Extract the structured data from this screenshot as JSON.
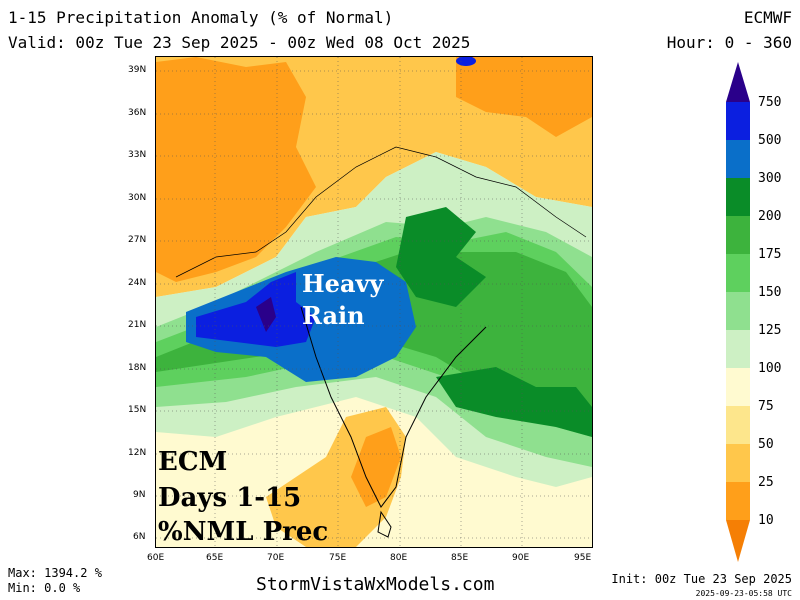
{
  "header": {
    "title": "1-15 Precipitation Anomaly (% of Normal)",
    "valid": "Valid: 00z Tue 23 Sep 2025 - 00z Wed 08 Oct 2025",
    "model": "ECMWF",
    "hours": "Hour: 0 - 360"
  },
  "map": {
    "lat_labels": [
      "39N",
      "36N",
      "33N",
      "30N",
      "27N",
      "24N",
      "21N",
      "18N",
      "15N",
      "12N",
      "9N",
      "6N"
    ],
    "lon_labels": [
      "60E",
      "65E",
      "70E",
      "75E",
      "80E",
      "85E",
      "90E",
      "95E"
    ],
    "overlay_heavy_line1": "Heavy",
    "overlay_heavy_line2": "Rain",
    "overlay_ecm_line1": "ECM",
    "overlay_ecm_line2": "Days 1-15",
    "overlay_ecm_line3": "%NML Prec"
  },
  "legend": {
    "levels": [
      "750",
      "500",
      "300",
      "200",
      "175",
      "150",
      "125",
      "100",
      "75",
      "50",
      "25",
      "10"
    ],
    "colors": [
      "#2a008a",
      "#0b1fe0",
      "#0a6fc9",
      "#0a8c28",
      "#3db33d",
      "#5ed05e",
      "#8fe08f",
      "#cdf0c4",
      "#fffad0",
      "#fde68c",
      "#ffc74b",
      "#ff9f1a",
      "#f57f05"
    ]
  },
  "footer": {
    "max": "Max: 1394.2 %",
    "min": "Min: 0.0 %",
    "site": "StormVistaWxModels.com",
    "init": "Init: 00z Tue 23 Sep 2025",
    "stamp": "2025-09-23-05:58 UTC"
  }
}
